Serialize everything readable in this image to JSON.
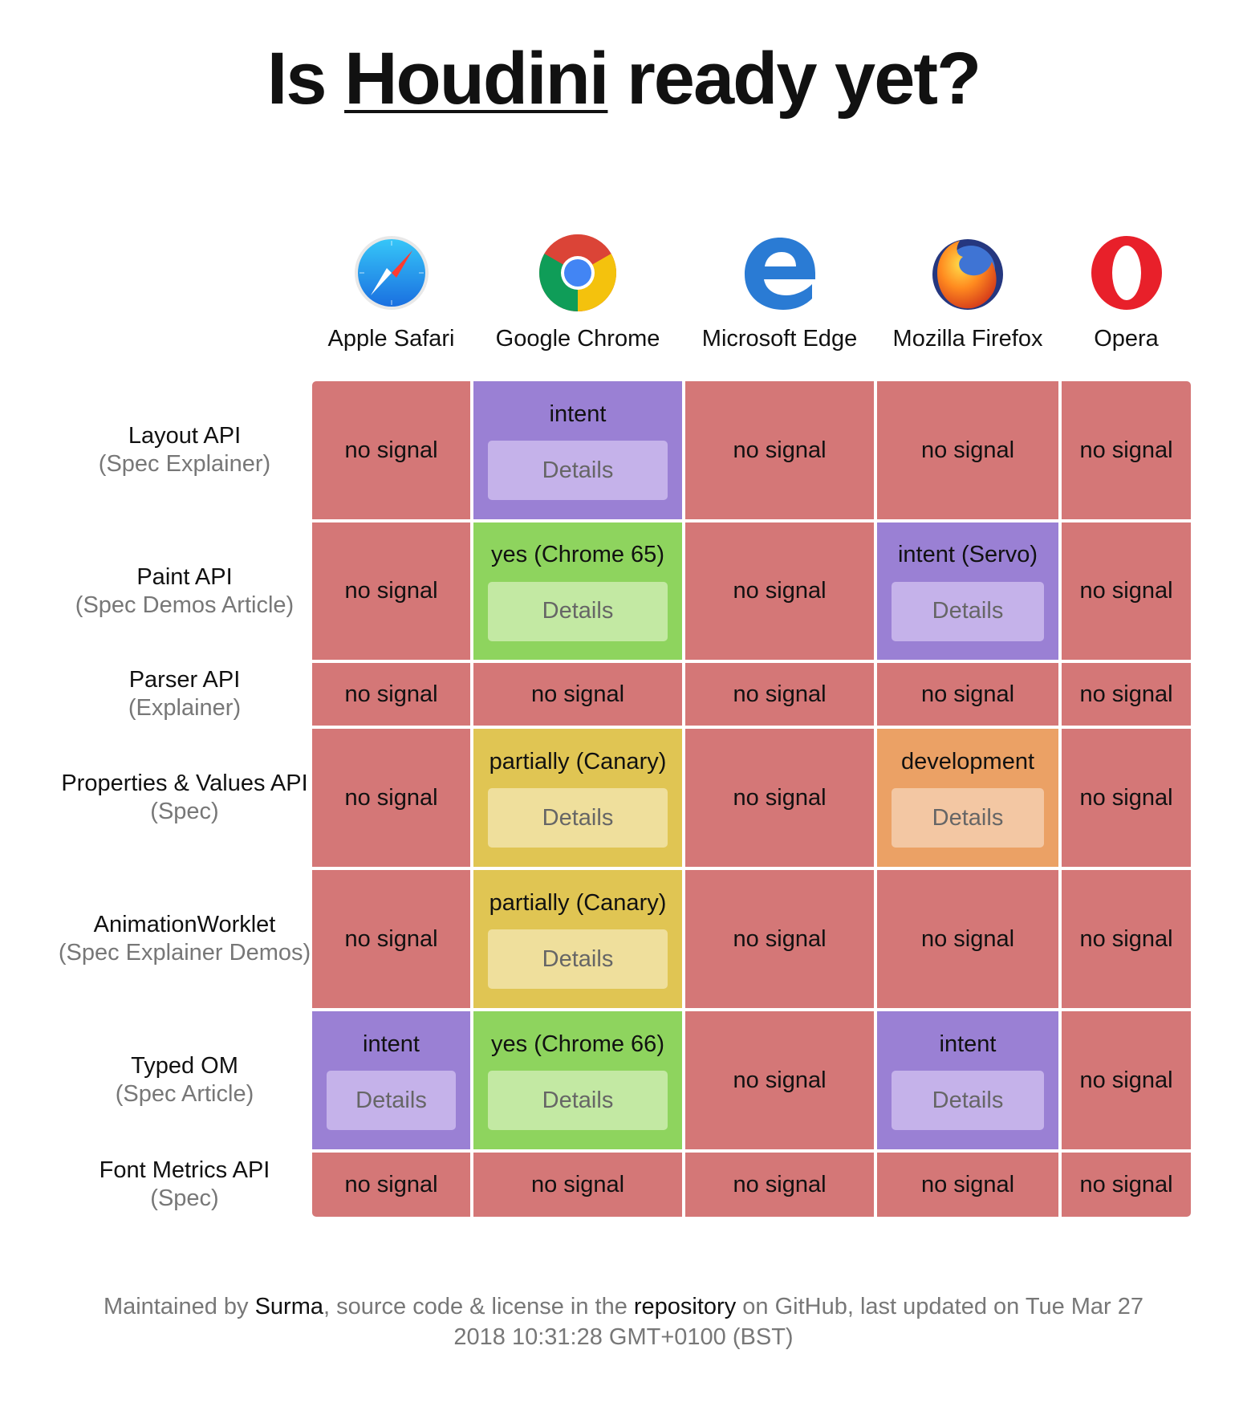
{
  "title": {
    "prefix": "Is ",
    "link": "Houdini",
    "suffix": " ready yet?"
  },
  "browsers": [
    {
      "name": "Apple Safari",
      "icon": "safari-icon"
    },
    {
      "name": "Google Chrome",
      "icon": "chrome-icon"
    },
    {
      "name": "Microsoft Edge",
      "icon": "edge-icon"
    },
    {
      "name": "Mozilla Firefox",
      "icon": "firefox-icon"
    },
    {
      "name": "Opera",
      "icon": "opera-icon"
    }
  ],
  "rows": [
    {
      "api": "Layout API",
      "links_open": "(",
      "links": [
        "Spec",
        "Explainer"
      ],
      "links_close": ")",
      "cells": [
        {
          "status": "no signal",
          "kind": "none"
        },
        {
          "status": "intent",
          "kind": "intent",
          "details": "Details"
        },
        {
          "status": "no signal",
          "kind": "none"
        },
        {
          "status": "no signal",
          "kind": "none"
        },
        {
          "status": "no signal",
          "kind": "none"
        }
      ]
    },
    {
      "api": "Paint API",
      "links_open": "(",
      "links": [
        "Spec",
        "Demos",
        "Article"
      ],
      "links_close": ")",
      "cells": [
        {
          "status": "no signal",
          "kind": "none"
        },
        {
          "status": "yes (Chrome 65)",
          "kind": "yes",
          "details": "Details"
        },
        {
          "status": "no signal",
          "kind": "none"
        },
        {
          "status": "intent (Servo)",
          "kind": "intent",
          "details": "Details"
        },
        {
          "status": "no signal",
          "kind": "none"
        }
      ]
    },
    {
      "api": "Parser API",
      "links_open": "(",
      "links": [
        "Explainer"
      ],
      "links_close": ")",
      "cells": [
        {
          "status": "no signal",
          "kind": "none"
        },
        {
          "status": "no signal",
          "kind": "none"
        },
        {
          "status": "no signal",
          "kind": "none"
        },
        {
          "status": "no signal",
          "kind": "none"
        },
        {
          "status": "no signal",
          "kind": "none"
        }
      ]
    },
    {
      "api": "Properties & Values API",
      "links_open": "(",
      "links": [
        "Spec"
      ],
      "links_close": ")",
      "cells": [
        {
          "status": "no signal",
          "kind": "none"
        },
        {
          "status": "partially (Canary)",
          "kind": "partial",
          "details": "Details"
        },
        {
          "status": "no signal",
          "kind": "none"
        },
        {
          "status": "development",
          "kind": "dev",
          "details": "Details"
        },
        {
          "status": "no signal",
          "kind": "none"
        }
      ]
    },
    {
      "api": "AnimationWorklet",
      "links_open": "(",
      "links": [
        "Spec",
        "Explainer",
        "Demos"
      ],
      "links_close": ")",
      "cells": [
        {
          "status": "no signal",
          "kind": "none"
        },
        {
          "status": "partially (Canary)",
          "kind": "partial",
          "details": "Details"
        },
        {
          "status": "no signal",
          "kind": "none"
        },
        {
          "status": "no signal",
          "kind": "none"
        },
        {
          "status": "no signal",
          "kind": "none"
        }
      ]
    },
    {
      "api": "Typed OM",
      "links_open": "(",
      "links": [
        "Spec",
        "Article"
      ],
      "links_close": ")",
      "cells": [
        {
          "status": "intent",
          "kind": "intent",
          "details": "Details"
        },
        {
          "status": "yes (Chrome 66)",
          "kind": "yes",
          "details": "Details"
        },
        {
          "status": "no signal",
          "kind": "none"
        },
        {
          "status": "intent",
          "kind": "intent",
          "details": "Details"
        },
        {
          "status": "no signal",
          "kind": "none"
        }
      ]
    },
    {
      "api": "Font Metrics API",
      "links_open": "(",
      "links": [
        "Spec"
      ],
      "links_close": ")",
      "cells": [
        {
          "status": "no signal",
          "kind": "none"
        },
        {
          "status": "no signal",
          "kind": "none"
        },
        {
          "status": "no signal",
          "kind": "none"
        },
        {
          "status": "no signal",
          "kind": "none"
        },
        {
          "status": "no signal",
          "kind": "none"
        }
      ]
    }
  ],
  "footer": {
    "p1": "Maintained by ",
    "author": "Surma",
    "p2": ", source code & license in the ",
    "repo": "repository",
    "p3": " on GitHub, last updated on Tue Mar 27 2018 10:31:28 GMT+0100 (BST)"
  },
  "colors": {
    "none": "#d47777",
    "intent": "#9a80d4",
    "yes": "#8ed45e",
    "partial": "#e0c553",
    "dev": "#eba165"
  }
}
